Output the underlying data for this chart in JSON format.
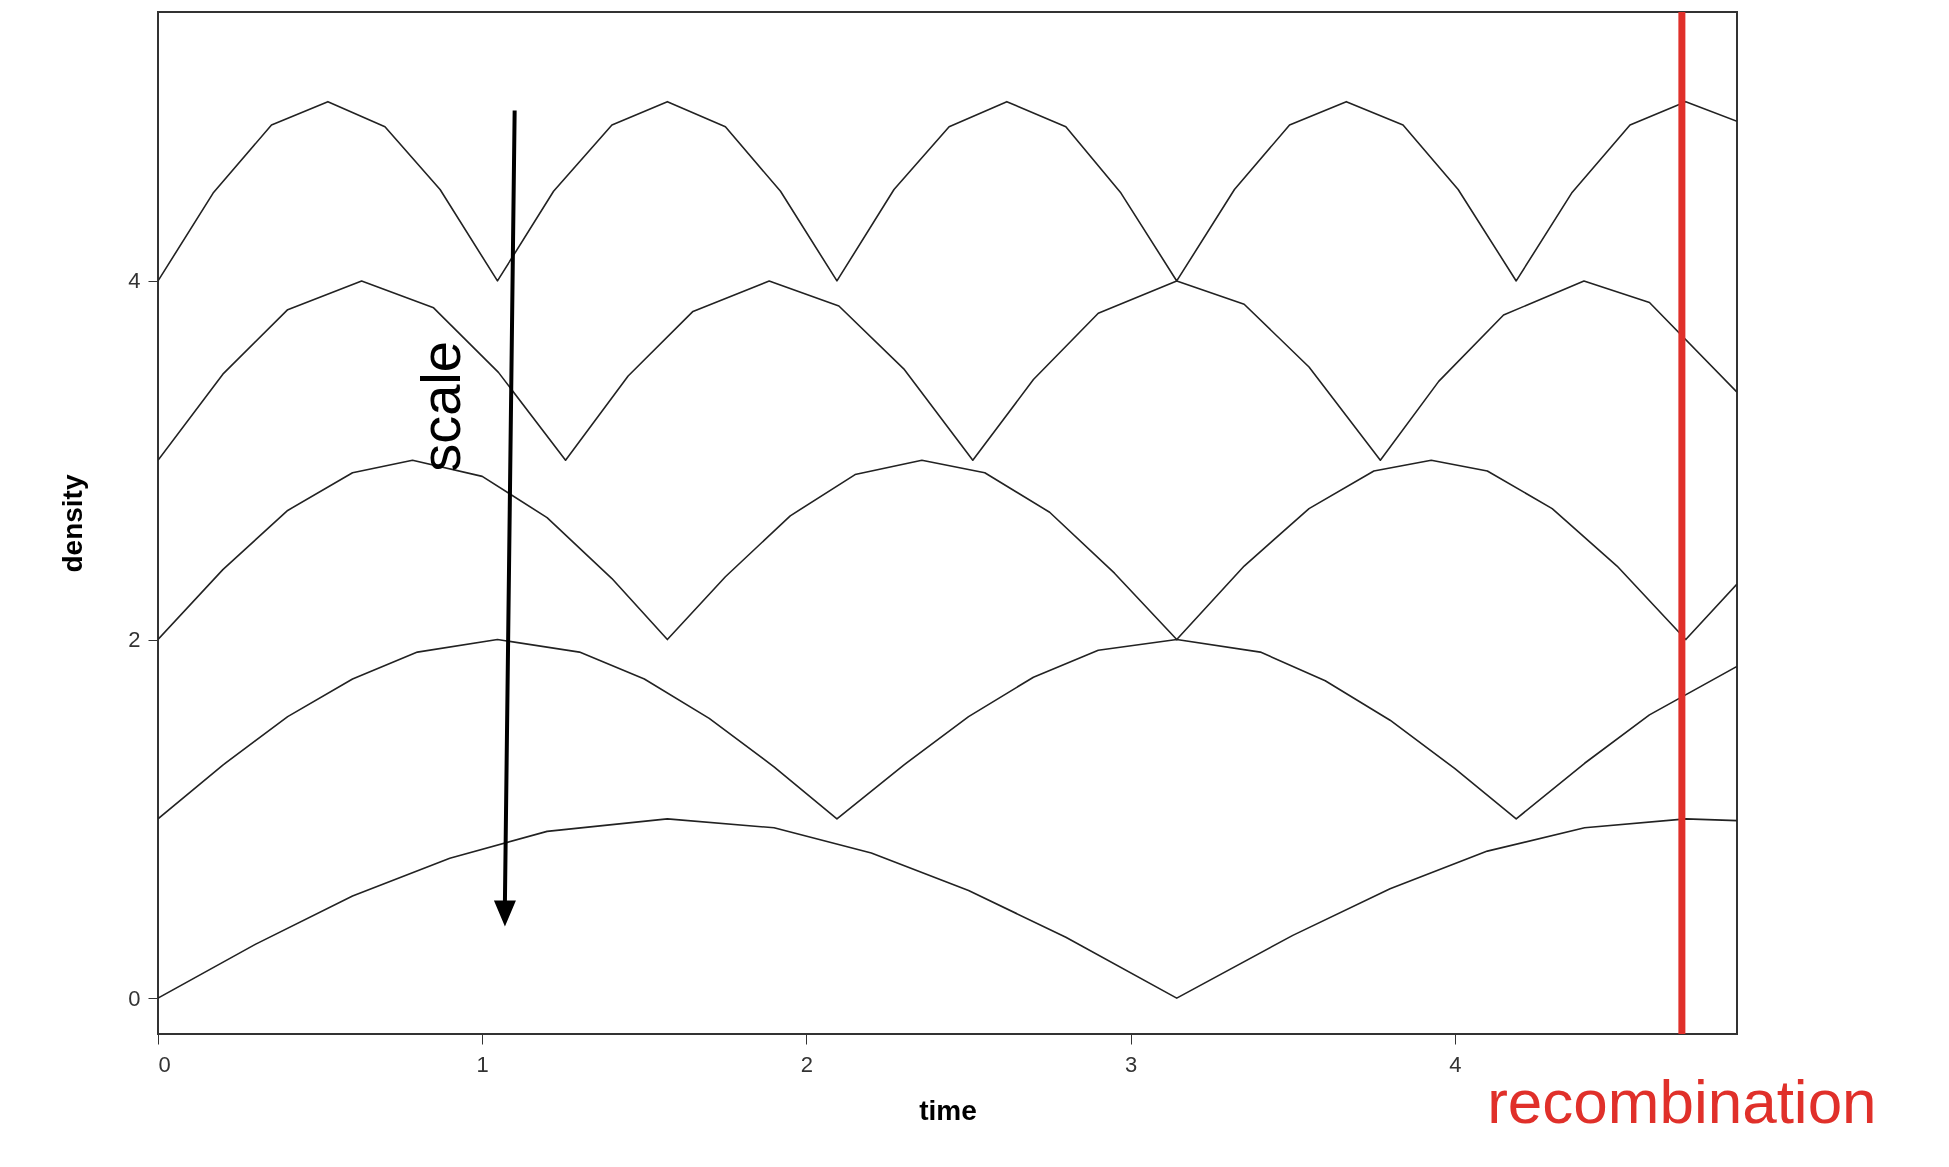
{
  "chart_data": {
    "type": "line",
    "xlabel": "time",
    "ylabel": "density",
    "xlim": [
      0,
      4.87
    ],
    "ylim": [
      -0.2,
      5.5
    ],
    "xticks": [
      0,
      1,
      2,
      3,
      4
    ],
    "yticks": [
      0,
      2,
      4
    ],
    "grid": false,
    "marker": "none",
    "line_style": "solid",
    "series": [
      {
        "color": "#222222",
        "x": [
          0,
          0.3,
          0.6,
          0.9,
          1.2,
          1.571,
          1.9,
          2.2,
          2.5,
          2.8,
          3.142,
          3.5,
          3.8,
          4.1,
          4.4,
          4.712,
          4.87
        ],
        "values": [
          0,
          0.3,
          0.57,
          0.78,
          0.93,
          1,
          0.95,
          0.81,
          0.6,
          0.34,
          0,
          0.35,
          0.61,
          0.82,
          0.95,
          1,
          0.99
        ]
      },
      {
        "color": "#222222",
        "x": [
          0,
          0.2,
          0.4,
          0.6,
          0.8,
          1.047,
          1.3,
          1.5,
          1.7,
          1.9,
          2.094,
          2.3,
          2.5,
          2.7,
          2.9,
          3.142,
          3.4,
          3.6,
          3.8,
          4.0,
          4.189,
          4.4,
          4.6,
          4.87
        ],
        "values": [
          1,
          1.3,
          1.57,
          1.78,
          1.93,
          2,
          1.93,
          1.78,
          1.56,
          1.29,
          1,
          1.3,
          1.57,
          1.79,
          1.94,
          2,
          1.93,
          1.77,
          1.55,
          1.28,
          1,
          1.31,
          1.58,
          1.85
        ]
      },
      {
        "color": "#222222",
        "x": [
          0,
          0.2,
          0.4,
          0.6,
          0.785,
          1.0,
          1.2,
          1.4,
          1.571,
          1.75,
          1.95,
          2.15,
          2.356,
          2.55,
          2.75,
          2.95,
          3.142,
          3.35,
          3.55,
          3.75,
          3.927,
          4.1,
          4.3,
          4.5,
          4.712,
          4.87
        ],
        "values": [
          2,
          2.39,
          2.72,
          2.93,
          3,
          2.91,
          2.68,
          2.34,
          2,
          2.35,
          2.69,
          2.92,
          3,
          2.93,
          2.71,
          2.37,
          2,
          2.41,
          2.73,
          2.94,
          3,
          2.94,
          2.73,
          2.41,
          2,
          2.31
        ]
      },
      {
        "color": "#222222",
        "x": [
          0,
          0.2,
          0.4,
          0.628,
          0.85,
          1.05,
          1.257,
          1.45,
          1.65,
          1.885,
          2.1,
          2.3,
          2.513,
          2.7,
          2.9,
          3.142,
          3.35,
          3.55,
          3.77,
          3.95,
          4.15,
          4.398,
          4.6,
          4.87
        ],
        "values": [
          3,
          3.48,
          3.84,
          4,
          3.85,
          3.49,
          3,
          3.47,
          3.83,
          4,
          3.86,
          3.51,
          3,
          3.45,
          3.82,
          4,
          3.87,
          3.52,
          3,
          3.44,
          3.81,
          4,
          3.88,
          3.38
        ]
      },
      {
        "color": "#222222",
        "x": [
          0,
          0.17,
          0.35,
          0.524,
          0.7,
          0.87,
          1.047,
          1.22,
          1.4,
          1.571,
          1.75,
          1.92,
          2.094,
          2.27,
          2.44,
          2.618,
          2.8,
          2.97,
          3.142,
          3.32,
          3.49,
          3.665,
          3.84,
          4.01,
          4.189,
          4.36,
          4.54,
          4.712,
          4.87
        ],
        "values": [
          4,
          4.49,
          4.87,
          5,
          4.86,
          4.51,
          4,
          4.5,
          4.87,
          5,
          4.86,
          4.5,
          4,
          4.51,
          4.86,
          5,
          4.86,
          4.49,
          4,
          4.51,
          4.87,
          5,
          4.87,
          4.51,
          4,
          4.49,
          4.87,
          5,
          4.89
        ]
      }
    ],
    "ref_lines": [
      {
        "axis": "x",
        "value": 4.7,
        "label": "recombination",
        "color": "#e0302a"
      }
    ],
    "annotations": [
      "scale"
    ]
  }
}
